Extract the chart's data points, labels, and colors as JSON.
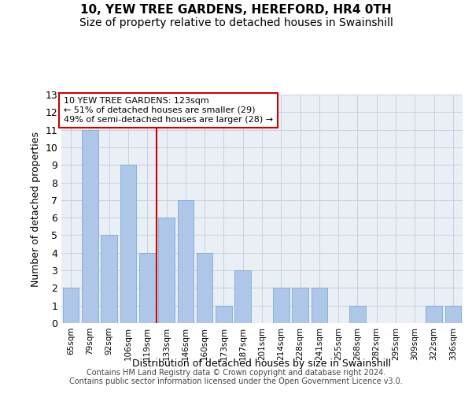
{
  "title": "10, YEW TREE GARDENS, HEREFORD, HR4 0TH",
  "subtitle": "Size of property relative to detached houses in Swainshill",
  "xlabel": "Distribution of detached houses by size in Swainshill",
  "ylabel": "Number of detached properties",
  "categories": [
    "65sqm",
    "79sqm",
    "92sqm",
    "106sqm",
    "119sqm",
    "133sqm",
    "146sqm",
    "160sqm",
    "173sqm",
    "187sqm",
    "201sqm",
    "214sqm",
    "228sqm",
    "241sqm",
    "255sqm",
    "268sqm",
    "282sqm",
    "295sqm",
    "309sqm",
    "322sqm",
    "336sqm"
  ],
  "values": [
    2,
    11,
    5,
    9,
    4,
    6,
    7,
    4,
    1,
    3,
    0,
    2,
    2,
    2,
    0,
    1,
    0,
    0,
    0,
    1,
    1
  ],
  "bar_color": "#aec6e8",
  "bar_edgecolor": "#7aadd4",
  "vline_x_index": 4.5,
  "vline_color": "#cc0000",
  "ylim": [
    0,
    13
  ],
  "yticks": [
    0,
    1,
    2,
    3,
    4,
    5,
    6,
    7,
    8,
    9,
    10,
    11,
    12,
    13
  ],
  "annotation_title": "10 YEW TREE GARDENS: 123sqm",
  "annotation_line1": "← 51% of detached houses are smaller (29)",
  "annotation_line2": "49% of semi-detached houses are larger (28) →",
  "annotation_box_edgecolor": "#cc0000",
  "grid_color": "#c8d0e0",
  "bg_color": "#eaeef5",
  "footer1": "Contains HM Land Registry data © Crown copyright and database right 2024.",
  "footer2": "Contains public sector information licensed under the Open Government Licence v3.0.",
  "title_fontsize": 11,
  "subtitle_fontsize": 10
}
